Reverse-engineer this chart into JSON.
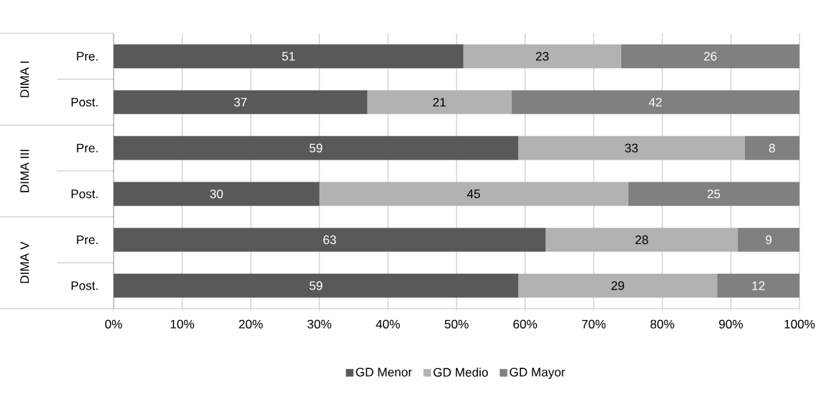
{
  "chart_data": {
    "type": "bar",
    "orientation": "horizontal",
    "stacked": true,
    "data_labels": true,
    "grid": "x",
    "legend": "bottom",
    "categories": [
      "Pre.",
      "Post.",
      "Pre.",
      "Post.",
      "Pre.",
      "Post."
    ],
    "annotations": [
      "DIMA I",
      "DIMA III",
      "DIMA V"
    ],
    "xlim": [
      0,
      100
    ],
    "xticks": [
      {
        "value": 0,
        "label": "0%"
      },
      {
        "value": 10,
        "label": "10%"
      },
      {
        "value": 20,
        "label": "20%"
      },
      {
        "value": 30,
        "label": "30%"
      },
      {
        "value": 40,
        "label": "40%"
      },
      {
        "value": 50,
        "label": "50%"
      },
      {
        "value": 60,
        "label": "60%"
      },
      {
        "value": 70,
        "label": "70%"
      },
      {
        "value": 80,
        "label": "80%"
      },
      {
        "value": 90,
        "label": "90%"
      },
      {
        "value": 100,
        "label": "100%"
      }
    ],
    "series": [
      {
        "name": "GD Menor",
        "color": "#595959",
        "values": [
          51,
          37,
          59,
          30,
          63,
          59
        ]
      },
      {
        "name": "GD Medio",
        "color": "#b2b2b2",
        "values": [
          23,
          21,
          33,
          45,
          28,
          29
        ]
      },
      {
        "name": "GD Mayor",
        "color": "#808080",
        "values": [
          26,
          42,
          8,
          25,
          9,
          12
        ]
      }
    ]
  }
}
